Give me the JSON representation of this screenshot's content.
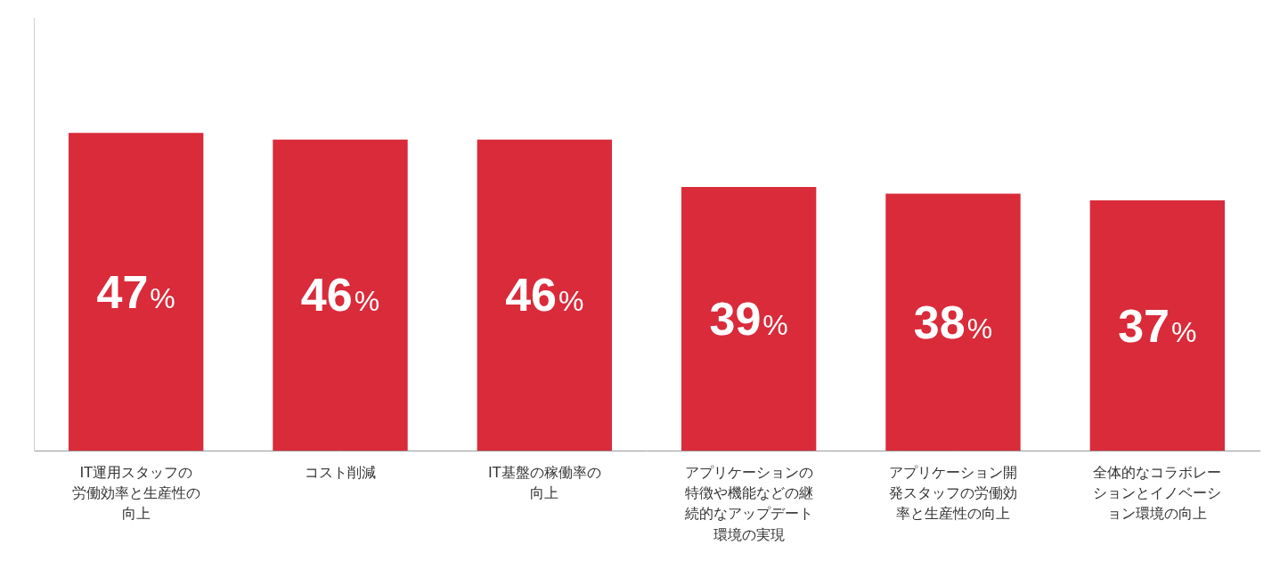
{
  "chart_data": {
    "type": "bar",
    "categories": [
      "IT運用スタッフの労働効率と生産性の向上",
      "コスト削減",
      "IT基盤の稼働率の向上",
      "アプリケーションの特徴や機能などの継続的なアップデート環境の実現",
      "アプリケーション開発スタッフの労働効率と生産性の向上",
      "全体的なコラボレーションとイノベーション環境の向上"
    ],
    "values": [
      47,
      46,
      46,
      39,
      38,
      37
    ],
    "value_labels": [
      "47%",
      "46%",
      "46%",
      "39%",
      "38%",
      "37%"
    ],
    "color": "#d92b3a",
    "ylim": [
      0,
      64
    ],
    "grid": false,
    "data_labels": true,
    "tick_labels": "x"
  }
}
